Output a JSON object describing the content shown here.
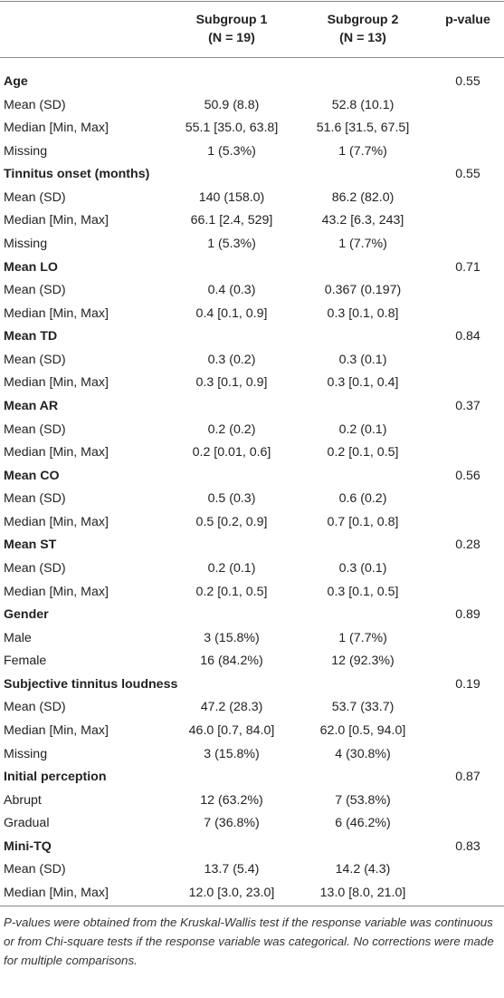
{
  "header": {
    "group1": [
      "Subgroup 1",
      "(N = 19)"
    ],
    "group2": [
      "Subgroup 2",
      "(N = 13)"
    ],
    "pvalue": "p-value"
  },
  "sections": [
    {
      "title": "Age",
      "p": "0.55",
      "rows": [
        [
          "Mean (SD)",
          "50.9 (8.8)",
          "52.8 (10.1)"
        ],
        [
          "Median [Min, Max]",
          "55.1 [35.0, 63.8]",
          "51.6 [31.5, 67.5]"
        ],
        [
          "Missing",
          "1 (5.3%)",
          "1 (7.7%)"
        ]
      ]
    },
    {
      "title": "Tinnitus onset (months)",
      "p": "0.55",
      "rows": [
        [
          "Mean (SD)",
          "140 (158.0)",
          "86.2 (82.0)"
        ],
        [
          "Median [Min, Max]",
          "66.1 [2.4, 529]",
          "43.2 [6.3, 243]"
        ],
        [
          "Missing",
          "1 (5.3%)",
          "1 (7.7%)"
        ]
      ]
    },
    {
      "title": "Mean LO",
      "p": "0.71",
      "rows": [
        [
          "Mean (SD)",
          "0.4 (0.3)",
          "0.367 (0.197)"
        ],
        [
          "Median [Min, Max]",
          "0.4 [0.1, 0.9]",
          "0.3 [0.1, 0.8]"
        ]
      ]
    },
    {
      "title": "Mean TD",
      "p": "0.84",
      "rows": [
        [
          "Mean (SD)",
          "0.3 (0.2)",
          "0.3 (0.1)"
        ],
        [
          "Median [Min, Max]",
          "0.3 [0.1, 0.9]",
          "0.3 [0.1, 0.4]"
        ]
      ]
    },
    {
      "title": "Mean AR",
      "p": "0.37",
      "rows": [
        [
          "Mean (SD)",
          "0.2 (0.2)",
          "0.2 (0.1)"
        ],
        [
          "Median [Min, Max]",
          "0.2 [0.01, 0.6]",
          "0.2 [0.1, 0.5]"
        ]
      ]
    },
    {
      "title": "Mean CO",
      "p": "0.56",
      "rows": [
        [
          "Mean (SD)",
          "0.5 (0.3)",
          "0.6 (0.2)"
        ],
        [
          "Median [Min, Max]",
          "0.5 [0.2, 0.9]",
          "0.7 [0.1, 0.8]"
        ]
      ]
    },
    {
      "title": "Mean ST",
      "p": "0.28",
      "rows": [
        [
          "Mean (SD)",
          "0.2 (0.1)",
          "0.3 (0.1)"
        ],
        [
          "Median [Min, Max]",
          "0.2 [0.1, 0.5]",
          "0.3 [0.1, 0.5]"
        ]
      ]
    },
    {
      "title": "Gender",
      "p": "0.89",
      "rows": [
        [
          "Male",
          "3 (15.8%)",
          "1 (7.7%)"
        ],
        [
          "Female",
          "16 (84.2%)",
          "12 (92.3%)"
        ]
      ]
    },
    {
      "title": "Subjective tinnitus loudness",
      "p": "0.19",
      "rows": [
        [
          "Mean (SD)",
          "47.2 (28.3)",
          "53.7 (33.7)"
        ],
        [
          "Median [Min, Max]",
          "46.0 [0.7, 84.0]",
          "62.0 [0.5, 94.0]"
        ],
        [
          "Missing",
          "3 (15.8%)",
          "4 (30.8%)"
        ]
      ]
    },
    {
      "title": "Initial perception",
      "p": "0.87",
      "rows": [
        [
          "Abrupt",
          "12 (63.2%)",
          "7 (53.8%)"
        ],
        [
          "Gradual",
          "7 (36.8%)",
          "6 (46.2%)"
        ]
      ]
    },
    {
      "title": "Mini-TQ",
      "p": "0.83",
      "rows": [
        [
          "Mean (SD)",
          "13.7 (5.4)",
          "14.2 (4.3)"
        ],
        [
          "Median [Min, Max]",
          "12.0 [3.0, 23.0]",
          "13.0 [8.0, 21.0]"
        ]
      ]
    }
  ],
  "footnote": "P-values were obtained from the Kruskal-Wallis test if the response variable was continuous or from Chi-square tests if the response variable was categorical. No corrections were made for multiple comparisons."
}
